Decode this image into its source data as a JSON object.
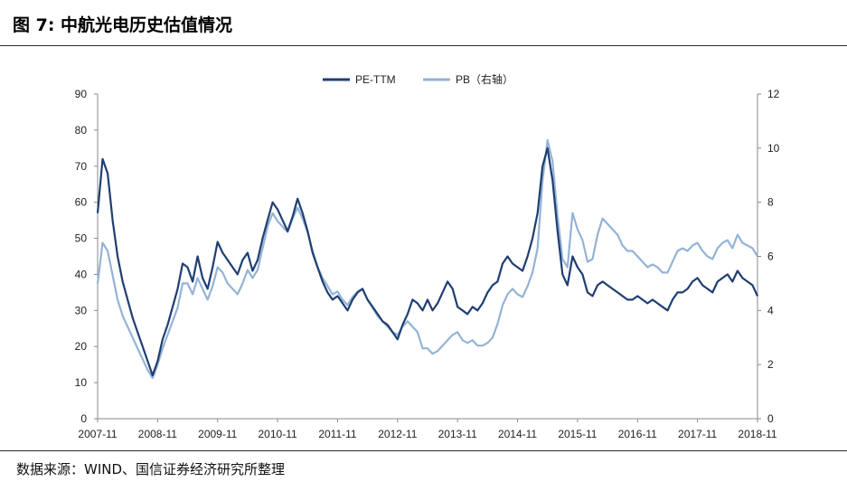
{
  "header": {
    "title": "图 7:  中航光电历史估值情况"
  },
  "footer": {
    "source": "数据来源：WIND、国信证券经济研究所整理"
  },
  "colors": {
    "pe": "#1f3e72",
    "pb": "#94b3d6",
    "axis": "#8a8a8a"
  },
  "chart_data": {
    "type": "line",
    "title": "",
    "x_tick_labels": [
      "2007-11",
      "2008-11",
      "2009-11",
      "2010-11",
      "2011-11",
      "2012-11",
      "2013-11",
      "2014-11",
      "2015-11",
      "2016-11",
      "2017-11",
      "2018-11"
    ],
    "y_left": {
      "ticks": [
        0,
        10,
        20,
        30,
        40,
        50,
        60,
        70,
        80,
        90
      ],
      "range": [
        0,
        90
      ]
    },
    "y_right": {
      "ticks": [
        0,
        2,
        4,
        6,
        8,
        10,
        12
      ],
      "range": [
        0,
        12
      ]
    },
    "legend": {
      "position": "top-center",
      "entries": [
        "PE-TTM",
        "PB（右轴）"
      ]
    },
    "series": [
      {
        "name": "PE-TTM",
        "axis": "left",
        "points": [
          [
            "2007-11",
            57
          ],
          [
            "2007-12",
            72
          ],
          [
            "2008-01",
            68
          ],
          [
            "2008-02",
            55
          ],
          [
            "2008-03",
            45
          ],
          [
            "2008-04",
            38
          ],
          [
            "2008-05",
            33
          ],
          [
            "2008-06",
            28
          ],
          [
            "2008-07",
            24
          ],
          [
            "2008-08",
            20
          ],
          [
            "2008-09",
            16
          ],
          [
            "2008-10",
            12
          ],
          [
            "2008-11",
            16
          ],
          [
            "2008-12",
            22
          ],
          [
            "2009-01",
            26
          ],
          [
            "2009-02",
            31
          ],
          [
            "2009-03",
            36
          ],
          [
            "2009-04",
            43
          ],
          [
            "2009-05",
            42
          ],
          [
            "2009-06",
            38
          ],
          [
            "2009-07",
            45
          ],
          [
            "2009-08",
            39
          ],
          [
            "2009-09",
            36
          ],
          [
            "2009-10",
            42
          ],
          [
            "2009-11",
            49
          ],
          [
            "2009-12",
            46
          ],
          [
            "2010-01",
            44
          ],
          [
            "2010-02",
            42
          ],
          [
            "2010-03",
            40
          ],
          [
            "2010-04",
            44
          ],
          [
            "2010-05",
            46
          ],
          [
            "2010-06",
            41
          ],
          [
            "2010-07",
            44
          ],
          [
            "2010-08",
            50
          ],
          [
            "2010-09",
            55
          ],
          [
            "2010-10",
            60
          ],
          [
            "2010-11",
            58
          ],
          [
            "2010-12",
            55
          ],
          [
            "2011-01",
            52
          ],
          [
            "2011-02",
            56
          ],
          [
            "2011-03",
            61
          ],
          [
            "2011-04",
            57
          ],
          [
            "2011-05",
            52
          ],
          [
            "2011-06",
            46
          ],
          [
            "2011-07",
            42
          ],
          [
            "2011-08",
            38
          ],
          [
            "2011-09",
            35
          ],
          [
            "2011-10",
            33
          ],
          [
            "2011-11",
            34
          ],
          [
            "2011-12",
            32
          ],
          [
            "2012-01",
            30
          ],
          [
            "2012-02",
            33
          ],
          [
            "2012-03",
            35
          ],
          [
            "2012-04",
            36
          ],
          [
            "2012-05",
            33
          ],
          [
            "2012-06",
            31
          ],
          [
            "2012-07",
            29
          ],
          [
            "2012-08",
            27
          ],
          [
            "2012-09",
            26
          ],
          [
            "2012-10",
            24
          ],
          [
            "2012-11",
            22
          ],
          [
            "2012-12",
            26
          ],
          [
            "2013-01",
            29
          ],
          [
            "2013-02",
            33
          ],
          [
            "2013-03",
            32
          ],
          [
            "2013-04",
            30
          ],
          [
            "2013-05",
            33
          ],
          [
            "2013-06",
            30
          ],
          [
            "2013-07",
            32
          ],
          [
            "2013-08",
            35
          ],
          [
            "2013-09",
            38
          ],
          [
            "2013-10",
            36
          ],
          [
            "2013-11",
            31
          ],
          [
            "2013-12",
            30
          ],
          [
            "2014-01",
            29
          ],
          [
            "2014-02",
            31
          ],
          [
            "2014-03",
            30
          ],
          [
            "2014-04",
            32
          ],
          [
            "2014-05",
            35
          ],
          [
            "2014-06",
            37
          ],
          [
            "2014-07",
            38
          ],
          [
            "2014-08",
            43
          ],
          [
            "2014-09",
            45
          ],
          [
            "2014-10",
            43
          ],
          [
            "2014-11",
            42
          ],
          [
            "2014-12",
            41
          ],
          [
            "2015-01",
            45
          ],
          [
            "2015-02",
            50
          ],
          [
            "2015-03",
            57
          ],
          [
            "2015-04",
            70
          ],
          [
            "2015-05",
            75
          ],
          [
            "2015-06",
            66
          ],
          [
            "2015-07",
            52
          ],
          [
            "2015-08",
            40
          ],
          [
            "2015-09",
            37
          ],
          [
            "2015-10",
            45
          ],
          [
            "2015-11",
            42
          ],
          [
            "2015-12",
            40
          ],
          [
            "2016-01",
            35
          ],
          [
            "2016-02",
            34
          ],
          [
            "2016-03",
            37
          ],
          [
            "2016-04",
            38
          ],
          [
            "2016-05",
            37
          ],
          [
            "2016-06",
            36
          ],
          [
            "2016-07",
            35
          ],
          [
            "2016-08",
            34
          ],
          [
            "2016-09",
            33
          ],
          [
            "2016-10",
            33
          ],
          [
            "2016-11",
            34
          ],
          [
            "2016-12",
            33
          ],
          [
            "2017-01",
            32
          ],
          [
            "2017-02",
            33
          ],
          [
            "2017-03",
            32
          ],
          [
            "2017-04",
            31
          ],
          [
            "2017-05",
            30
          ],
          [
            "2017-06",
            33
          ],
          [
            "2017-07",
            35
          ],
          [
            "2017-08",
            35
          ],
          [
            "2017-09",
            36
          ],
          [
            "2017-10",
            38
          ],
          [
            "2017-11",
            39
          ],
          [
            "2017-12",
            37
          ],
          [
            "2018-01",
            36
          ],
          [
            "2018-02",
            35
          ],
          [
            "2018-03",
            38
          ],
          [
            "2018-04",
            39
          ],
          [
            "2018-05",
            40
          ],
          [
            "2018-06",
            38
          ],
          [
            "2018-07",
            41
          ],
          [
            "2018-08",
            39
          ],
          [
            "2018-09",
            38
          ],
          [
            "2018-10",
            37
          ],
          [
            "2018-11",
            34
          ]
        ]
      },
      {
        "name": "PB（右轴）",
        "axis": "right",
        "points": [
          [
            "2007-11",
            5.0
          ],
          [
            "2007-12",
            6.5
          ],
          [
            "2008-01",
            6.2
          ],
          [
            "2008-02",
            5.3
          ],
          [
            "2008-03",
            4.4
          ],
          [
            "2008-04",
            3.8
          ],
          [
            "2008-05",
            3.4
          ],
          [
            "2008-06",
            3.0
          ],
          [
            "2008-07",
            2.6
          ],
          [
            "2008-08",
            2.2
          ],
          [
            "2008-09",
            1.8
          ],
          [
            "2008-10",
            1.5
          ],
          [
            "2008-11",
            2.0
          ],
          [
            "2008-12",
            2.6
          ],
          [
            "2009-01",
            3.1
          ],
          [
            "2009-02",
            3.6
          ],
          [
            "2009-03",
            4.1
          ],
          [
            "2009-04",
            5.0
          ],
          [
            "2009-05",
            5.0
          ],
          [
            "2009-06",
            4.6
          ],
          [
            "2009-07",
            5.2
          ],
          [
            "2009-08",
            4.8
          ],
          [
            "2009-09",
            4.4
          ],
          [
            "2009-10",
            4.9
          ],
          [
            "2009-11",
            5.6
          ],
          [
            "2009-12",
            5.4
          ],
          [
            "2010-01",
            5.0
          ],
          [
            "2010-02",
            4.8
          ],
          [
            "2010-03",
            4.6
          ],
          [
            "2010-04",
            5.0
          ],
          [
            "2010-05",
            5.5
          ],
          [
            "2010-06",
            5.2
          ],
          [
            "2010-07",
            5.5
          ],
          [
            "2010-08",
            6.3
          ],
          [
            "2010-09",
            7.1
          ],
          [
            "2010-10",
            7.6
          ],
          [
            "2010-11",
            7.3
          ],
          [
            "2010-12",
            7.1
          ],
          [
            "2011-01",
            6.9
          ],
          [
            "2011-02",
            7.4
          ],
          [
            "2011-03",
            7.8
          ],
          [
            "2011-04",
            7.4
          ],
          [
            "2011-05",
            6.9
          ],
          [
            "2011-06",
            6.2
          ],
          [
            "2011-07",
            5.6
          ],
          [
            "2011-08",
            5.2
          ],
          [
            "2011-09",
            4.9
          ],
          [
            "2011-10",
            4.6
          ],
          [
            "2011-11",
            4.7
          ],
          [
            "2011-12",
            4.4
          ],
          [
            "2012-01",
            4.2
          ],
          [
            "2012-02",
            4.5
          ],
          [
            "2012-03",
            4.7
          ],
          [
            "2012-04",
            4.8
          ],
          [
            "2012-05",
            4.4
          ],
          [
            "2012-06",
            4.1
          ],
          [
            "2012-07",
            3.8
          ],
          [
            "2012-08",
            3.6
          ],
          [
            "2012-09",
            3.4
          ],
          [
            "2012-10",
            3.2
          ],
          [
            "2012-11",
            3.1
          ],
          [
            "2012-12",
            3.4
          ],
          [
            "2013-01",
            3.6
          ],
          [
            "2013-02",
            3.4
          ],
          [
            "2013-03",
            3.2
          ],
          [
            "2013-04",
            2.6
          ],
          [
            "2013-05",
            2.6
          ],
          [
            "2013-06",
            2.4
          ],
          [
            "2013-07",
            2.5
          ],
          [
            "2013-08",
            2.7
          ],
          [
            "2013-09",
            2.9
          ],
          [
            "2013-10",
            3.1
          ],
          [
            "2013-11",
            3.2
          ],
          [
            "2013-12",
            2.9
          ],
          [
            "2014-01",
            2.8
          ],
          [
            "2014-02",
            2.9
          ],
          [
            "2014-03",
            2.7
          ],
          [
            "2014-04",
            2.7
          ],
          [
            "2014-05",
            2.8
          ],
          [
            "2014-06",
            3.0
          ],
          [
            "2014-07",
            3.5
          ],
          [
            "2014-08",
            4.2
          ],
          [
            "2014-09",
            4.6
          ],
          [
            "2014-10",
            4.8
          ],
          [
            "2014-11",
            4.6
          ],
          [
            "2014-12",
            4.5
          ],
          [
            "2015-01",
            4.9
          ],
          [
            "2015-02",
            5.4
          ],
          [
            "2015-03",
            6.3
          ],
          [
            "2015-04",
            8.8
          ],
          [
            "2015-05",
            10.3
          ],
          [
            "2015-06",
            9.5
          ],
          [
            "2015-07",
            7.5
          ],
          [
            "2015-08",
            5.9
          ],
          [
            "2015-09",
            5.6
          ],
          [
            "2015-10",
            7.6
          ],
          [
            "2015-11",
            7.0
          ],
          [
            "2015-12",
            6.6
          ],
          [
            "2016-01",
            5.8
          ],
          [
            "2016-02",
            5.9
          ],
          [
            "2016-03",
            6.8
          ],
          [
            "2016-04",
            7.4
          ],
          [
            "2016-05",
            7.2
          ],
          [
            "2016-06",
            7.0
          ],
          [
            "2016-07",
            6.8
          ],
          [
            "2016-08",
            6.4
          ],
          [
            "2016-09",
            6.2
          ],
          [
            "2016-10",
            6.2
          ],
          [
            "2016-11",
            6.0
          ],
          [
            "2016-12",
            5.8
          ],
          [
            "2017-01",
            5.6
          ],
          [
            "2017-02",
            5.7
          ],
          [
            "2017-03",
            5.6
          ],
          [
            "2017-04",
            5.4
          ],
          [
            "2017-05",
            5.4
          ],
          [
            "2017-06",
            5.8
          ],
          [
            "2017-07",
            6.2
          ],
          [
            "2017-08",
            6.3
          ],
          [
            "2017-09",
            6.2
          ],
          [
            "2017-10",
            6.4
          ],
          [
            "2017-11",
            6.5
          ],
          [
            "2017-12",
            6.2
          ],
          [
            "2018-01",
            6.0
          ],
          [
            "2018-02",
            5.9
          ],
          [
            "2018-03",
            6.3
          ],
          [
            "2018-04",
            6.5
          ],
          [
            "2018-05",
            6.6
          ],
          [
            "2018-06",
            6.3
          ],
          [
            "2018-07",
            6.8
          ],
          [
            "2018-08",
            6.5
          ],
          [
            "2018-09",
            6.4
          ],
          [
            "2018-10",
            6.3
          ],
          [
            "2018-11",
            6.0
          ]
        ]
      }
    ]
  }
}
